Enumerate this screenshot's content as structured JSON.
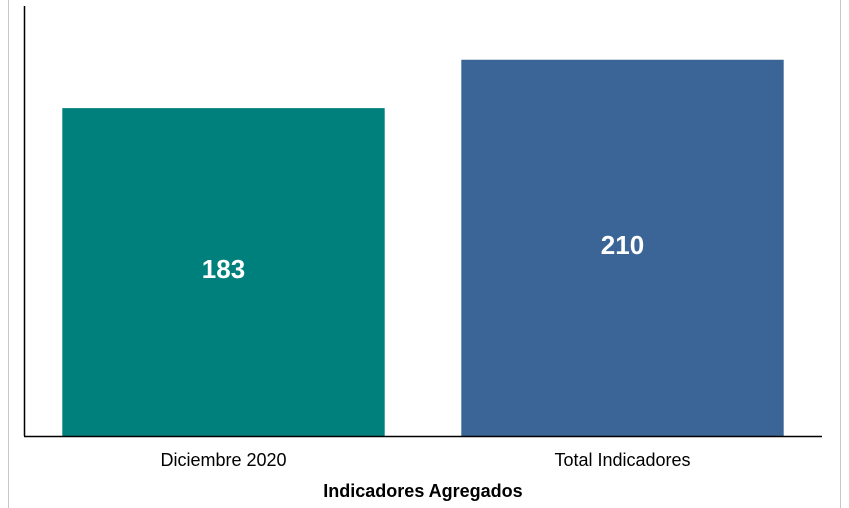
{
  "chart_data": {
    "type": "bar",
    "xlabel": "Indicadores Agregados",
    "categories": [
      "Diciembre 2020",
      "Total Indicadores"
    ],
    "values": [
      183,
      210
    ],
    "colors": [
      "#00807c",
      "#3a6596"
    ],
    "ylim": [
      0,
      240
    ]
  }
}
